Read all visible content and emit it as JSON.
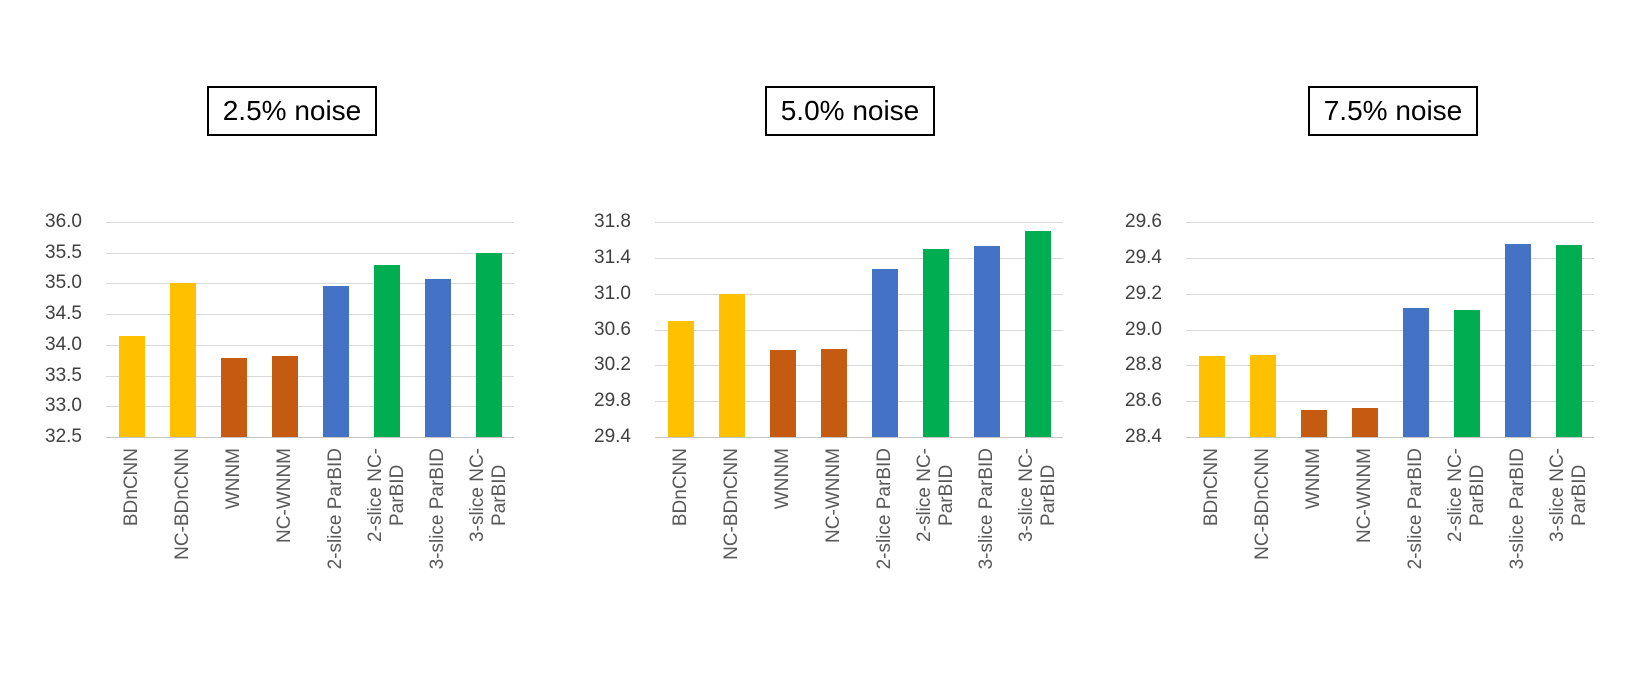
{
  "figure": {
    "background": "#FFFFFF",
    "description_titles": [
      "2.5% noise",
      "5.0% noise",
      "7.5% noise"
    ]
  },
  "colors": {
    "yellow": "#FFC000",
    "orange": "#C55A11",
    "blue": "#4472C4",
    "green": "#00AD50",
    "gridline": "#D9D9D9",
    "axis_line": "#C6C6C6",
    "y_tick_text": "#404040",
    "x_tick_text": "#595959",
    "title_text": "#000000",
    "title_border": "#000000"
  },
  "chart_data": [
    {
      "type": "bar",
      "title": "2.5% noise",
      "xlabel": "",
      "ylabel": "",
      "grid": true,
      "legend": null,
      "categories": [
        "BDnCNN",
        "NC-BDnCNN",
        "WNNM",
        "NC-WNNM",
        "2-slice ParBID",
        "2-slice NC-ParBID",
        "3-slice ParBID",
        "3-slice NC-ParBID"
      ],
      "category_label_lines": [
        [
          "BDnCNN"
        ],
        [
          "NC-BDnCNN"
        ],
        [
          "WNNM"
        ],
        [
          "NC-WNNM"
        ],
        [
          "2-slice ParBID"
        ],
        [
          "2-slice NC-",
          "ParBID"
        ],
        [
          "3-slice ParBID"
        ],
        [
          "3-slice NC-",
          "ParBID"
        ]
      ],
      "values": [
        34.15,
        35.0,
        33.78,
        33.82,
        34.96,
        35.3,
        35.07,
        35.5
      ],
      "bar_color_names": [
        "yellow",
        "yellow",
        "orange",
        "orange",
        "blue",
        "green",
        "blue",
        "green"
      ],
      "y_ticks": [
        "36.0",
        "35.5",
        "35.0",
        "34.5",
        "34.0",
        "33.5",
        "33.0",
        "32.5"
      ],
      "ylim": [
        32.5,
        36.0
      ],
      "ytick_step": 0.5
    },
    {
      "type": "bar",
      "title": "5.0% noise",
      "xlabel": "",
      "ylabel": "",
      "grid": true,
      "legend": null,
      "categories": [
        "BDnCNN",
        "NC-BDnCNN",
        "WNNM",
        "NC-WNNM",
        "2-slice ParBID",
        "2-slice NC-ParBID",
        "3-slice ParBID",
        "3-slice NC-ParBID"
      ],
      "category_label_lines": [
        [
          "BDnCNN"
        ],
        [
          "NC-BDnCNN"
        ],
        [
          "WNNM"
        ],
        [
          "NC-WNNM"
        ],
        [
          "2-slice ParBID"
        ],
        [
          "2-slice NC-",
          "ParBID"
        ],
        [
          "3-slice ParBID"
        ],
        [
          "3-slice NC-",
          "ParBID"
        ]
      ],
      "values": [
        30.69,
        31.0,
        30.37,
        30.38,
        31.28,
        31.5,
        31.53,
        31.7
      ],
      "bar_color_names": [
        "yellow",
        "yellow",
        "orange",
        "orange",
        "blue",
        "green",
        "blue",
        "green"
      ],
      "y_ticks": [
        "31.8",
        "31.4",
        "31.0",
        "30.6",
        "30.2",
        "29.8",
        "29.4"
      ],
      "ylim": [
        29.4,
        31.8
      ],
      "ytick_step": 0.4
    },
    {
      "type": "bar",
      "title": "7.5% noise",
      "xlabel": "",
      "ylabel": "",
      "grid": true,
      "legend": null,
      "categories": [
        "BDnCNN",
        "NC-BDnCNN",
        "WNNM",
        "NC-WNNM",
        "2-slice ParBID",
        "2-slice NC-ParBID",
        "3-slice ParBID",
        "3-slice NC-ParBID"
      ],
      "category_label_lines": [
        [
          "BDnCNN"
        ],
        [
          "NC-BDnCNN"
        ],
        [
          "WNNM"
        ],
        [
          "NC-WNNM"
        ],
        [
          "2-slice ParBID"
        ],
        [
          "2-slice NC-",
          "ParBID"
        ],
        [
          "3-slice ParBID"
        ],
        [
          "3-slice NC-",
          "ParBID"
        ]
      ],
      "values": [
        28.85,
        28.86,
        28.55,
        28.56,
        29.12,
        29.11,
        29.48,
        29.47
      ],
      "bar_color_names": [
        "yellow",
        "yellow",
        "orange",
        "orange",
        "blue",
        "green",
        "blue",
        "green"
      ],
      "y_ticks": [
        "29.6",
        "29.4",
        "29.2",
        "29.0",
        "28.8",
        "28.6",
        "28.4"
      ],
      "ylim": [
        28.4,
        29.6
      ],
      "ytick_step": 0.2
    }
  ]
}
